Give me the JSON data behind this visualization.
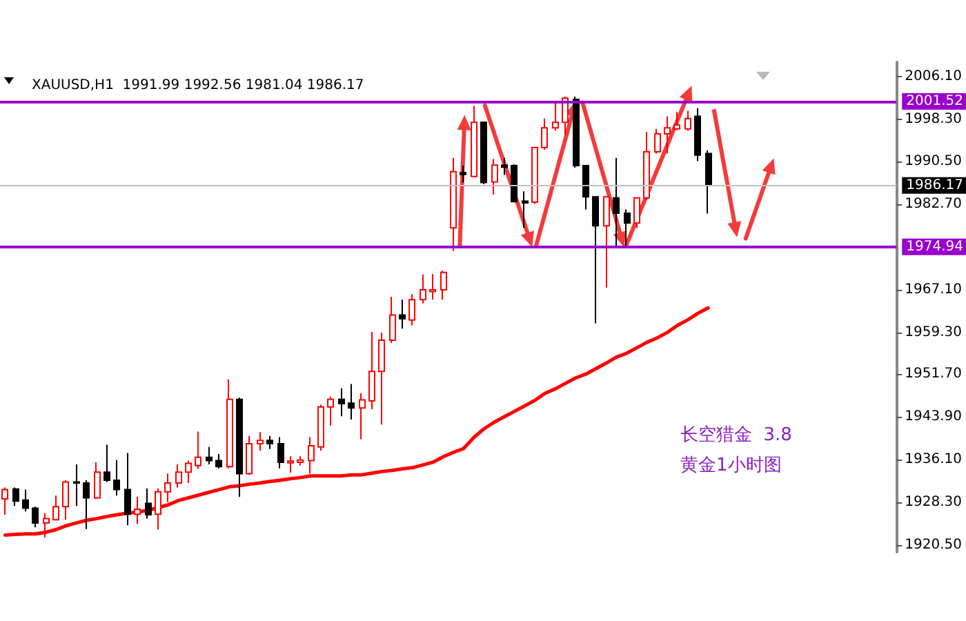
{
  "chart_data": {
    "type": "candlestick",
    "title": "XAUUSD,H1  1991.99 1992.56 1981.04 1986.17",
    "categories": [
      null,
      null,
      null,
      null,
      null,
      null,
      null,
      null,
      null,
      null,
      null,
      null,
      null,
      null,
      null,
      null,
      null,
      null,
      null,
      null,
      null,
      null,
      null,
      null,
      null,
      null,
      null,
      null,
      null,
      null,
      null,
      null,
      null,
      null,
      null,
      null,
      null,
      null,
      null,
      null,
      null,
      null,
      null,
      null,
      null,
      null,
      null,
      null,
      null,
      null,
      null,
      null,
      null,
      null,
      null,
      null,
      null,
      null,
      null,
      null,
      null,
      null,
      null,
      null,
      null,
      null,
      null,
      null,
      null,
      null
    ],
    "series": [
      {
        "colors": [
          "#ff0000",
          "#000000",
          "#000000",
          "#000000",
          "#ff0000",
          "#ff0000",
          "#ff0000",
          "#000000",
          "#000000",
          "#ff0000",
          "#000000",
          "#000000",
          "#000000",
          "#ff0000",
          "#000000",
          "#ff0000",
          "#ff0000",
          "#ff0000",
          "#ff0000",
          "#ff0000",
          "#000000",
          "#000000",
          "#ff0000",
          "#000000",
          "#ff0000",
          "#ff0000",
          "#000000",
          "#000000",
          "#ff0000",
          "#ff0000",
          "#ff0000",
          "#ff0000",
          "#ff0000",
          "#000000",
          "#000000",
          "#ff0000",
          "#ff0000",
          "#ff0000",
          "#ff0000",
          "#000000",
          "#ff0000",
          "#ff0000",
          "#ff0000",
          "#ff0000",
          "#ff0000",
          "#000000",
          "#ff0000",
          "#000000",
          "#ff0000",
          "#000000",
          "#000000",
          "#000000",
          "#ff0000",
          "#ff0000",
          "#ff0000",
          "#ff0000",
          "#000000",
          "#000000",
          "#000000",
          "#ff0000",
          "#000000",
          "#000000",
          "#ff0000",
          "#ff0000",
          "#ff0000",
          "#ff0000",
          "#ff0000",
          "#ff0000",
          "#000000",
          "#000000"
        ],
        "ohlc": [
          [
            1928.9,
            1931.0,
            1926.0,
            1930.6
          ],
          [
            1930.7,
            1931.0,
            1927.6,
            1928.5
          ],
          [
            1928.7,
            1930.6,
            1926.6,
            1927.2
          ],
          [
            1927.2,
            1927.5,
            1923.7,
            1924.5
          ],
          [
            1924.5,
            1926.3,
            1921.8,
            1925.3
          ],
          [
            1925.1,
            1929.5,
            1925.0,
            1927.5
          ],
          [
            1927.5,
            1932.3,
            1925.1,
            1932.0
          ],
          [
            1932.0,
            1935.2,
            1927.6,
            1931.8
          ],
          [
            1931.8,
            1932.3,
            1923.4,
            1929.1
          ],
          [
            1929.1,
            1935.6,
            1928.9,
            1933.8
          ],
          [
            1933.8,
            1938.8,
            1932.0,
            1932.3
          ],
          [
            1932.3,
            1936.0,
            1929.5,
            1930.6
          ],
          [
            1930.6,
            1937.3,
            1924.1,
            1926.1
          ],
          [
            1926.1,
            1929.3,
            1924.3,
            1927.0
          ],
          [
            1928.1,
            1930.8,
            1925.3,
            1926.0
          ],
          [
            1926.1,
            1930.8,
            1923.3,
            1930.2
          ],
          [
            1930.2,
            1933.5,
            1928.3,
            1931.8
          ],
          [
            1931.8,
            1935.2,
            1931.0,
            1933.8
          ],
          [
            1933.8,
            1935.9,
            1931.8,
            1935.4
          ],
          [
            1935.0,
            1941.2,
            1934.4,
            1936.5
          ],
          [
            1936.5,
            1938.4,
            1935.2,
            1935.9
          ],
          [
            1935.9,
            1937.1,
            1934.5,
            1934.8
          ],
          [
            1934.8,
            1950.7,
            1934.5,
            1947.1
          ],
          [
            1947.1,
            1947.4,
            1929.3,
            1933.5
          ],
          [
            1933.5,
            1940.4,
            1933.3,
            1939.0
          ],
          [
            1939.0,
            1941.1,
            1937.7,
            1939.6
          ],
          [
            1939.6,
            1940.4,
            1938.0,
            1939.0
          ],
          [
            1939.0,
            1940.2,
            1934.5,
            1935.6
          ],
          [
            1935.5,
            1936.7,
            1933.7,
            1935.8
          ],
          [
            1935.6,
            1936.7,
            1935.0,
            1936.0
          ],
          [
            1935.9,
            1940.2,
            1933.5,
            1938.6
          ],
          [
            1938.4,
            1946.1,
            1937.7,
            1945.7
          ],
          [
            1945.7,
            1947.6,
            1942.3,
            1947.1
          ],
          [
            1947.1,
            1949.1,
            1944.0,
            1946.3
          ],
          [
            1946.4,
            1949.9,
            1943.4,
            1945.5
          ],
          [
            1945.5,
            1948.2,
            1939.8,
            1947.0
          ],
          [
            1946.8,
            1959.4,
            1945.3,
            1952.2
          ],
          [
            1952.2,
            1959.3,
            1942.5,
            1957.9
          ],
          [
            1957.9,
            1965.8,
            1957.4,
            1962.5
          ],
          [
            1962.5,
            1965.3,
            1960.0,
            1961.8
          ],
          [
            1961.6,
            1966.3,
            1960.6,
            1965.3
          ],
          [
            1965.3,
            1969.9,
            1964.6,
            1967.1
          ],
          [
            1966.8,
            1970.0,
            1965.3,
            1967.1
          ],
          [
            1967.1,
            1970.6,
            1965.3,
            1970.3
          ],
          [
            1978.4,
            1991.2,
            1974.2,
            1988.7
          ],
          [
            1988.5,
            1989.8,
            1986.7,
            1988.2
          ],
          [
            1987.8,
            2000.7,
            1987.7,
            1997.7
          ],
          [
            1997.7,
            1997.8,
            1986.4,
            1986.7
          ],
          [
            1986.8,
            1991.0,
            1984.5,
            1989.9
          ],
          [
            1989.9,
            1991.2,
            1988.1,
            1989.5
          ],
          [
            1989.8,
            1990.0,
            1983.1,
            1983.2
          ],
          [
            1983.3,
            1985.1,
            1978.4,
            1983.0
          ],
          [
            1983.1,
            1993.2,
            1982.8,
            1993.1
          ],
          [
            1993.1,
            1998.4,
            1992.7,
            1996.7
          ],
          [
            1996.7,
            2001.3,
            1996.2,
            1997.7
          ],
          [
            1997.7,
            2002.4,
            1995.4,
            2002.1
          ],
          [
            2001.9,
            2002.4,
            1989.4,
            1989.8
          ],
          [
            1989.8,
            1989.9,
            1981.8,
            1984.1
          ],
          [
            1984.1,
            1984.2,
            1961.0,
            1978.8
          ],
          [
            1978.8,
            1984.2,
            1967.5,
            1984.1
          ],
          [
            1983.9,
            1991.2,
            1974.9,
            1981.1
          ],
          [
            1981.1,
            1981.8,
            1974.9,
            1979.3
          ],
          [
            1979.3,
            1984.0,
            1978.4,
            1983.9
          ],
          [
            1983.9,
            1995.9,
            1983.5,
            1992.3
          ],
          [
            1992.3,
            1996.5,
            1992.0,
            1995.6
          ],
          [
            1995.6,
            1998.8,
            1992.0,
            1996.7
          ],
          [
            1996.5,
            1999.6,
            1996.3,
            1997.2
          ],
          [
            1996.5,
            1999.8,
            1996.2,
            1998.4
          ],
          [
            1998.8,
            2000.3,
            1990.6,
            1991.7
          ],
          [
            1991.99,
            1992.56,
            1981.04,
            1986.17
          ]
        ]
      },
      {
        "type": "line",
        "color": "#ff0000",
        "values": [
          1922.3,
          1922.4,
          1922.5,
          1922.5,
          1922.8,
          1923.3,
          1924.0,
          1924.5,
          1925.0,
          1925.3,
          1925.7,
          1926.0,
          1926.3,
          1926.5,
          1926.8,
          1927.3,
          1927.8,
          1928.6,
          1929.1,
          1929.6,
          1930.1,
          1930.6,
          1931.1,
          1931.3,
          1931.6,
          1931.8,
          1932.1,
          1932.3,
          1932.6,
          1932.8,
          1933.1,
          1933.1,
          1933.1,
          1933.1,
          1933.3,
          1933.3,
          1933.6,
          1933.9,
          1934.1,
          1934.4,
          1934.6,
          1935.1,
          1935.6,
          1936.6,
          1937.4,
          1938.1,
          1940.1,
          1941.7,
          1942.9,
          1943.9,
          1944.9,
          1945.9,
          1946.9,
          1948.2,
          1949.0,
          1950.0,
          1951.0,
          1951.7,
          1952.7,
          1953.7,
          1954.8,
          1955.5,
          1956.5,
          1957.5,
          1958.3,
          1959.3,
          1960.6,
          1961.6,
          1962.8,
          1963.8
        ]
      }
    ],
    "ylim": [
      1919.2,
      2008.7
    ],
    "yticks": [
      {
        "value": 1920.5,
        "label": "1920.50"
      },
      {
        "value": 1928.3,
        "label": "1928.30"
      },
      {
        "value": 1936.1,
        "label": "1936.10"
      },
      {
        "value": 1943.9,
        "label": "1943.90"
      },
      {
        "value": 1951.7,
        "label": "1951.70"
      },
      {
        "value": 1959.3,
        "label": "1959.30"
      },
      {
        "value": 1967.1,
        "label": "1967.10"
      },
      {
        "value": 1982.7,
        "label": "1982.70"
      },
      {
        "value": 1990.5,
        "label": "1990.50"
      },
      {
        "value": 1998.3,
        "label": "1998.30"
      },
      {
        "value": 2006.1,
        "label": "2006.10"
      }
    ],
    "ref_lines": [
      {
        "axis": "y",
        "value": 2001.52,
        "label": "2001.52",
        "color": "#9900cc"
      },
      {
        "axis": "y",
        "value": 1986.17,
        "label": "1986.17",
        "color": "#c0c0c0"
      },
      {
        "axis": "y",
        "value": 1974.94,
        "label": "1974.94",
        "color": "#9900cc"
      }
    ],
    "annotations": [
      "长空猎金  3.8",
      "黄金1小时图"
    ],
    "marker": "none",
    "grid": false,
    "tick_labels": "y"
  }
}
